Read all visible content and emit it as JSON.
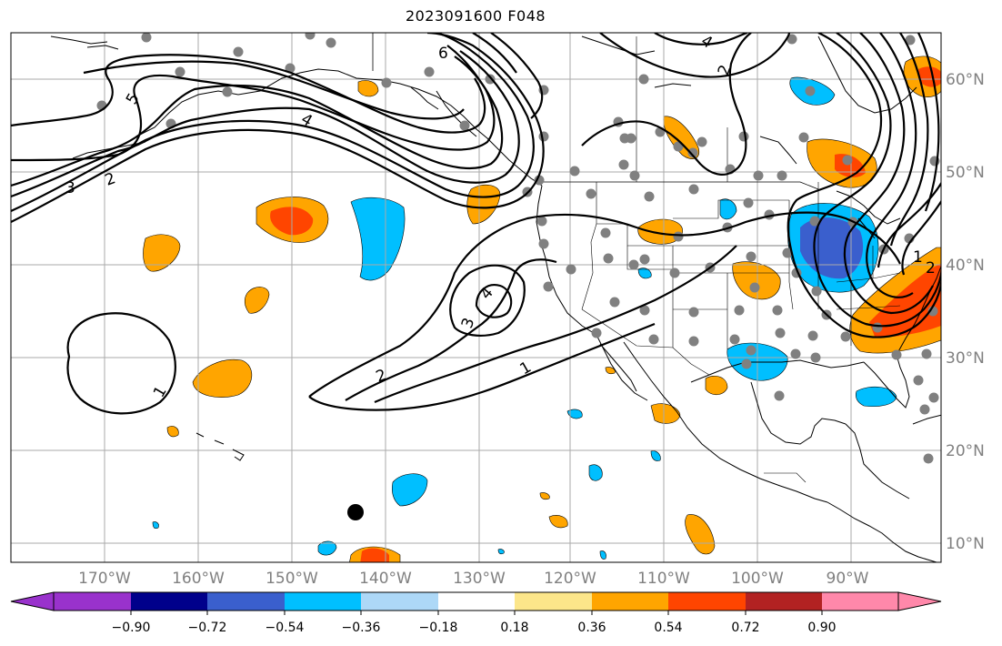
{
  "title": "2023091600 F048",
  "lon_labels": [
    "170°W",
    "160°W",
    "150°W",
    "140°W",
    "130°W",
    "120°W",
    "110°W",
    "100°W",
    "90°W"
  ],
  "lat_labels": [
    "60°N",
    "50°N",
    "40°N",
    "30°N",
    "20°N",
    "10°N"
  ],
  "contour_labels": [
    "6",
    "5",
    "4",
    "4",
    "3",
    "2",
    "2",
    "3",
    "4",
    "2",
    "1",
    "1",
    "1",
    "2"
  ],
  "colorbar": {
    "tick_labels": [
      "−0.90",
      "−0.72",
      "−0.54",
      "−0.36",
      "−0.18",
      "0.18",
      "0.36",
      "0.54",
      "0.72",
      "0.90"
    ],
    "colors": [
      "#9932cc",
      "#00008b",
      "#3a5fcd",
      "#00bfff",
      "#add8f7",
      "#ffffff",
      "#fce68a",
      "#ffa500",
      "#ff4500",
      "#b22222",
      "#ff88aa"
    ]
  },
  "colors": {
    "grid": "#aaaaaa",
    "axis_text": "#808080",
    "station": "#808080",
    "contour": "#000000",
    "coast": "#000000",
    "orange": "#ffa500",
    "red": "#ff4500",
    "light_blue": "#00bfff",
    "blue": "#3a5fcd"
  }
}
